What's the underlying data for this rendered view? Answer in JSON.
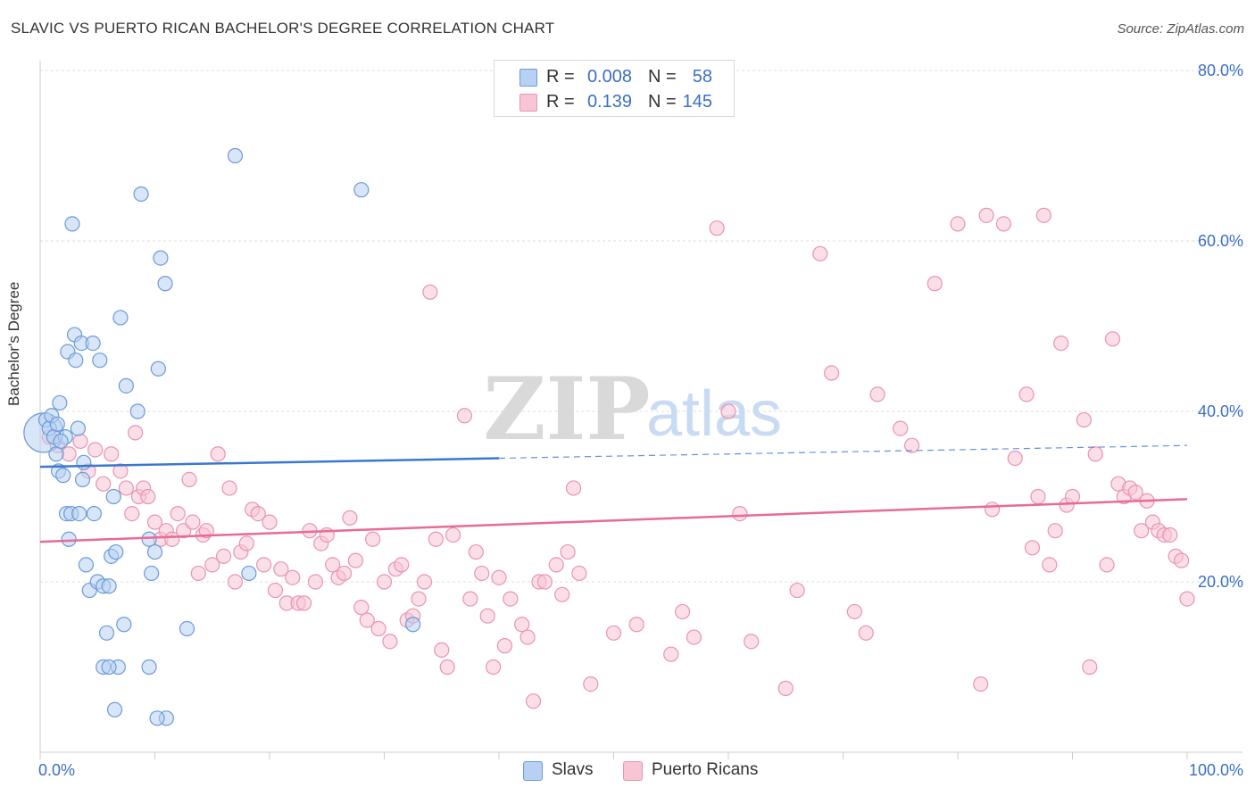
{
  "title": "SLAVIC VS PUERTO RICAN BACHELOR'S DEGREE CORRELATION CHART",
  "source": "Source: ZipAtlas.com",
  "watermark": {
    "zip": "ZIP",
    "atlas": "atlas"
  },
  "colors": {
    "slavs_fill": "#b8d1f3",
    "slavs_stroke": "#6a9bd8",
    "slavs_line": "#3a78d0",
    "pr_fill": "#f8c5d5",
    "pr_stroke": "#e993b0",
    "pr_line": "#e86a96",
    "axis_text": "#3a6fc4",
    "grid": "#dddddd"
  },
  "legend": {
    "slavs": {
      "r_label": "R =",
      "r_value": "0.008",
      "n_label": "N =",
      "n_value": "58"
    },
    "pr": {
      "r_label": "R =",
      "r_value": "0.139",
      "n_label": "N =",
      "n_value": "145"
    }
  },
  "bottom_legend": {
    "slavs": "Slavs",
    "pr": "Puerto Ricans"
  },
  "chart_data": {
    "type": "scatter",
    "title": "SLAVIC VS PUERTO RICAN BACHELOR'S DEGREE CORRELATION CHART",
    "xlabel": "",
    "ylabel": "Bachelor's Degree",
    "xlim": [
      0,
      100
    ],
    "ylim": [
      0,
      82
    ],
    "x_tick_labels": {
      "left": "0.0%",
      "right": "100.0%"
    },
    "y_ticks": [
      20,
      40,
      60,
      80
    ],
    "y_tick_labels": [
      "20.0%",
      "40.0%",
      "60.0%",
      "80.0%"
    ],
    "series": [
      {
        "name": "Slavs",
        "trend": {
          "x0": 0,
          "y0": 33.5,
          "x1": 40,
          "y1": 34.5,
          "dash_to_x": 100,
          "dash_to_y": 36.0
        },
        "points": [
          [
            0.5,
            39
          ],
          [
            0.8,
            38
          ],
          [
            1.0,
            39.5
          ],
          [
            1.2,
            37
          ],
          [
            1.5,
            38.5
          ],
          [
            1.7,
            41
          ],
          [
            1.4,
            35
          ],
          [
            1.6,
            33
          ],
          [
            2.0,
            32.5
          ],
          [
            2.2,
            37
          ],
          [
            2.3,
            28
          ],
          [
            2.5,
            25
          ],
          [
            2.4,
            47
          ],
          [
            2.7,
            28
          ],
          [
            2.8,
            62
          ],
          [
            3.0,
            49
          ],
          [
            3.1,
            46
          ],
          [
            3.3,
            38
          ],
          [
            3.4,
            28
          ],
          [
            3.6,
            48
          ],
          [
            3.7,
            32
          ],
          [
            3.8,
            34
          ],
          [
            4.0,
            22
          ],
          [
            4.3,
            19
          ],
          [
            4.6,
            48
          ],
          [
            4.7,
            28
          ],
          [
            5.0,
            20
          ],
          [
            5.2,
            46
          ],
          [
            5.5,
            19.5
          ],
          [
            5.8,
            14
          ],
          [
            6.0,
            19.5
          ],
          [
            6.2,
            23
          ],
          [
            6.4,
            30
          ],
          [
            6.6,
            23.5
          ],
          [
            7.0,
            51
          ],
          [
            7.3,
            15
          ],
          [
            7.5,
            43
          ],
          [
            8.5,
            40
          ],
          [
            8.8,
            65.5
          ],
          [
            9.5,
            25
          ],
          [
            9.7,
            21
          ],
          [
            10,
            23.5
          ],
          [
            10.3,
            45
          ],
          [
            10.5,
            58
          ],
          [
            10.9,
            55
          ],
          [
            11,
            4
          ],
          [
            12.8,
            14.5
          ],
          [
            6.5,
            5
          ],
          [
            10.2,
            4
          ],
          [
            9.5,
            10
          ],
          [
            6.8,
            10
          ],
          [
            17.0,
            70
          ],
          [
            18.2,
            21
          ],
          [
            28.0,
            66
          ],
          [
            32.5,
            15
          ],
          [
            5.5,
            10
          ],
          [
            6.0,
            10
          ],
          [
            1.8,
            36.5
          ]
        ],
        "big_point": [
          0.3,
          37.5
        ]
      },
      {
        "name": "Puerto Ricans",
        "trend": {
          "x0": 0,
          "y0": 24.7,
          "x1": 100,
          "y1": 29.7
        },
        "points": [
          [
            0.8,
            37
          ],
          [
            1.5,
            36
          ],
          [
            2.5,
            35
          ],
          [
            3.5,
            36.5
          ],
          [
            4.2,
            33
          ],
          [
            4.8,
            35.5
          ],
          [
            5.5,
            31.5
          ],
          [
            6.2,
            35
          ],
          [
            7.0,
            33
          ],
          [
            7.5,
            31
          ],
          [
            8.0,
            28
          ],
          [
            8.3,
            37.5
          ],
          [
            8.6,
            30
          ],
          [
            9.0,
            31
          ],
          [
            9.4,
            30
          ],
          [
            10.0,
            27
          ],
          [
            10.5,
            25
          ],
          [
            11.0,
            26
          ],
          [
            11.5,
            25
          ],
          [
            12.0,
            28
          ],
          [
            12.5,
            26
          ],
          [
            13,
            32
          ],
          [
            13.3,
            27
          ],
          [
            13.8,
            21
          ],
          [
            14.2,
            25.5
          ],
          [
            14.5,
            26
          ],
          [
            15.0,
            22
          ],
          [
            15.5,
            35
          ],
          [
            16,
            23
          ],
          [
            16.5,
            31
          ],
          [
            17,
            20
          ],
          [
            17.5,
            23.5
          ],
          [
            18,
            24.5
          ],
          [
            18.5,
            28.5
          ],
          [
            19,
            28
          ],
          [
            19.5,
            22
          ],
          [
            20,
            27
          ],
          [
            20.5,
            19
          ],
          [
            21,
            21.5
          ],
          [
            21.5,
            17.5
          ],
          [
            22,
            20.5
          ],
          [
            22.5,
            17.5
          ],
          [
            23,
            17.5
          ],
          [
            23.5,
            26
          ],
          [
            24,
            20
          ],
          [
            24.5,
            24.5
          ],
          [
            25,
            25.5
          ],
          [
            25.5,
            22
          ],
          [
            26,
            20.5
          ],
          [
            26.5,
            21
          ],
          [
            27,
            27.5
          ],
          [
            27.5,
            22.5
          ],
          [
            28,
            17
          ],
          [
            28.5,
            15.5
          ],
          [
            29,
            25
          ],
          [
            29.5,
            14.5
          ],
          [
            30,
            20
          ],
          [
            30.5,
            13
          ],
          [
            31,
            21.5
          ],
          [
            31.5,
            22
          ],
          [
            32,
            15.5
          ],
          [
            32.5,
            16
          ],
          [
            33,
            18
          ],
          [
            33.5,
            20
          ],
          [
            34,
            54
          ],
          [
            34.5,
            25
          ],
          [
            35,
            12
          ],
          [
            35.5,
            10
          ],
          [
            36,
            25.5
          ],
          [
            37,
            39.5
          ],
          [
            37.5,
            18
          ],
          [
            38,
            23.5
          ],
          [
            38.5,
            21
          ],
          [
            39,
            16
          ],
          [
            39.5,
            10
          ],
          [
            40,
            20.5
          ],
          [
            40.5,
            12.5
          ],
          [
            41,
            18
          ],
          [
            42,
            15
          ],
          [
            42.5,
            13.5
          ],
          [
            43,
            6
          ],
          [
            43.5,
            20
          ],
          [
            44,
            20
          ],
          [
            45,
            22
          ],
          [
            45.5,
            18.5
          ],
          [
            46,
            23.5
          ],
          [
            46.5,
            31
          ],
          [
            47,
            21
          ],
          [
            48,
            8
          ],
          [
            50,
            14
          ],
          [
            52,
            15
          ],
          [
            55,
            11.5
          ],
          [
            56,
            16.5
          ],
          [
            57,
            13.5
          ],
          [
            59,
            61.5
          ],
          [
            60,
            40
          ],
          [
            61,
            28
          ],
          [
            62,
            13
          ],
          [
            65,
            7.5
          ],
          [
            66,
            19
          ],
          [
            68,
            58.5
          ],
          [
            69,
            44.5
          ],
          [
            71,
            16.5
          ],
          [
            72,
            14
          ],
          [
            73,
            42
          ],
          [
            75,
            38
          ],
          [
            76,
            36
          ],
          [
            78,
            55
          ],
          [
            80,
            62
          ],
          [
            82,
            8
          ],
          [
            82.5,
            63
          ],
          [
            83,
            28.5
          ],
          [
            84,
            62
          ],
          [
            85,
            34.5
          ],
          [
            86,
            42
          ],
          [
            86.5,
            24
          ],
          [
            87,
            30
          ],
          [
            87.5,
            63
          ],
          [
            88,
            22
          ],
          [
            88.5,
            26
          ],
          [
            89,
            48
          ],
          [
            89.5,
            29
          ],
          [
            90,
            30
          ],
          [
            91,
            39
          ],
          [
            91.5,
            10
          ],
          [
            92,
            35
          ],
          [
            93,
            22
          ],
          [
            93.5,
            48.5
          ],
          [
            94,
            31.5
          ],
          [
            94.5,
            30
          ],
          [
            95,
            31
          ],
          [
            95.5,
            30.5
          ],
          [
            96,
            26
          ],
          [
            96.5,
            29.5
          ],
          [
            97,
            27
          ],
          [
            97.5,
            26
          ],
          [
            98,
            25.5
          ],
          [
            98.5,
            25.5
          ],
          [
            99,
            23
          ],
          [
            99.5,
            22.5
          ],
          [
            100,
            18
          ]
        ]
      }
    ]
  }
}
